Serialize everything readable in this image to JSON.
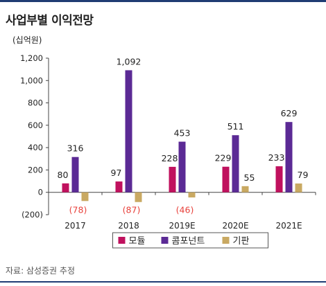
{
  "header": {
    "title": "사업부별 이익전망"
  },
  "source_note": "자료: 삼성증권 추정",
  "chart_data": {
    "type": "bar",
    "title": "사업부별 이익전망",
    "unit_label": "(십억원)",
    "categories": [
      "2017",
      "2018",
      "2019E",
      "2020E",
      "2021E"
    ],
    "ylim": [
      -200,
      1200
    ],
    "yticks": [
      -200,
      0,
      200,
      400,
      600,
      800,
      1000,
      1200
    ],
    "ytick_labels": [
      "(200)",
      "0",
      "200",
      "400",
      "600",
      "800",
      "1,000",
      "1,200"
    ],
    "grid": false,
    "legend_position": "bottom",
    "series": [
      {
        "name": "모듈",
        "color": "#c0115e",
        "values": [
          80,
          97,
          228,
          229,
          233
        ],
        "labels": [
          "80",
          "97",
          "228",
          "229",
          "233"
        ]
      },
      {
        "name": "콤포넌트",
        "color": "#5b2a95",
        "values": [
          316,
          1092,
          453,
          511,
          629
        ],
        "labels": [
          "316",
          "1,092",
          "453",
          "511",
          "629"
        ]
      },
      {
        "name": "기판",
        "color": "#c9a962",
        "values": [
          -78,
          -87,
          -46,
          55,
          79
        ],
        "labels": [
          "(78)",
          "(87)",
          "(46)",
          "55",
          "79"
        ]
      }
    ],
    "negative_label_color": "#e8423c"
  }
}
